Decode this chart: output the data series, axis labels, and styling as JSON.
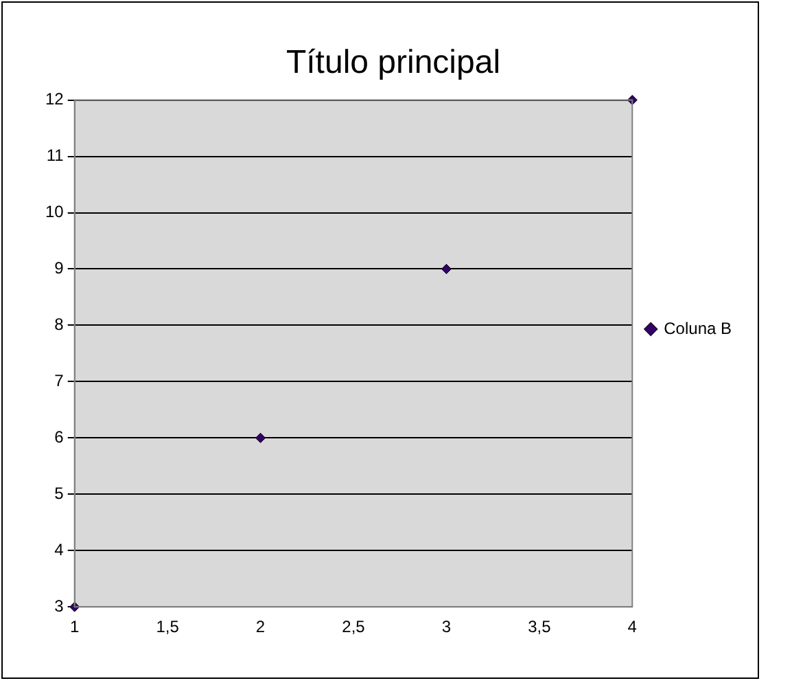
{
  "chart_data": {
    "type": "scatter",
    "title": "Título principal",
    "x": [
      1,
      2,
      3,
      4
    ],
    "series": [
      {
        "name": "Coluna B",
        "color": "#330066",
        "values": [
          3,
          6,
          9,
          12
        ]
      }
    ],
    "xlim": [
      1,
      4
    ],
    "xticks": [
      1,
      {
        "value": 1.5,
        "label": "1,5"
      },
      2,
      {
        "value": 2.5,
        "label": "2,5"
      },
      3,
      {
        "value": 3.5,
        "label": "3,5"
      },
      4
    ],
    "ylim": [
      3,
      12
    ],
    "yticks": [
      3,
      4,
      5,
      6,
      7,
      8,
      9,
      10,
      11,
      12
    ],
    "grid": "y",
    "legend": "right",
    "marker": "diamond"
  }
}
